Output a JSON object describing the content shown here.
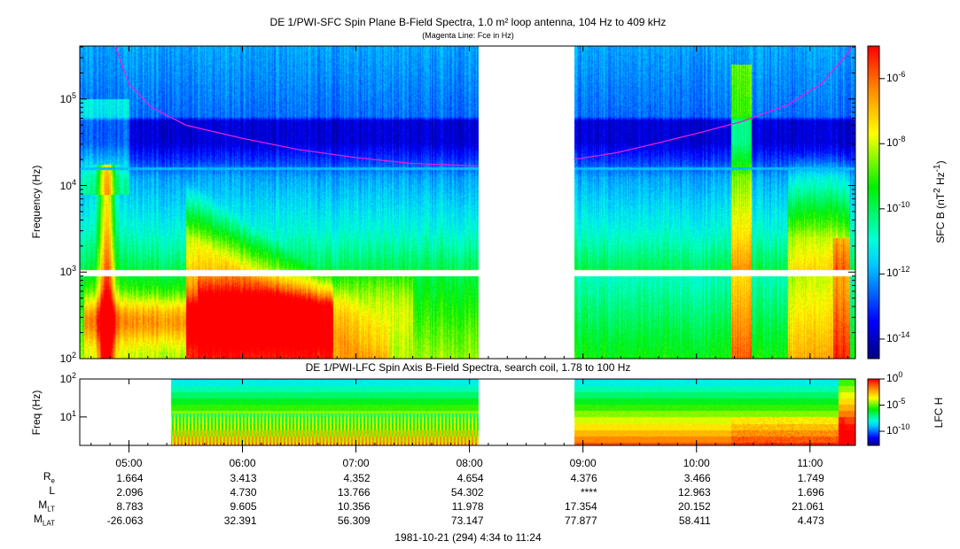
{
  "chart_data": [
    {
      "type": "heatmap",
      "title": "DE 1/PWI-SFC  Spin Plane B-Field Spectra, 1.0 m² loop antenna, 104 Hz to 409 kHz",
      "subtitle": "(Magenta Line: Fce in Hz)",
      "ylabel": "Frequency (Hz)",
      "yscale": "log",
      "ylim": [
        100,
        409000
      ],
      "yticks": [
        {
          "label": "10",
          "exp": "2",
          "value": 100
        },
        {
          "label": "10",
          "exp": "3",
          "value": 1000
        },
        {
          "label": "10",
          "exp": "4",
          "value": 10000
        },
        {
          "label": "10",
          "exp": "5",
          "value": 100000
        }
      ],
      "colorbar": {
        "label": "SFC B (nT² Hz⁻¹)",
        "label_main": "SFC B (nT",
        "label_sup1": "2",
        "label_mid": " Hz",
        "label_sup2": "-1",
        "label_end": ")",
        "log_range": [
          -14.6,
          -5.0
        ],
        "ticks": [
          {
            "label": "10",
            "exp": "-6",
            "value": -6
          },
          {
            "label": "10",
            "exp": "-8",
            "value": -8
          },
          {
            "label": "10",
            "exp": "-10",
            "value": -10
          },
          {
            "label": "10",
            "exp": "-12",
            "value": -12
          },
          {
            "label": "10",
            "exp": "-14",
            "value": -14
          }
        ]
      },
      "data_gap_hours": [
        8.08,
        8.92
      ],
      "fce_line": {
        "color": "#e020e0",
        "points_hours_hz": [
          [
            4.88,
            409000
          ],
          [
            5.0,
            150000
          ],
          [
            5.2,
            80000
          ],
          [
            5.5,
            50000
          ],
          [
            6.0,
            35000
          ],
          [
            6.5,
            26000
          ],
          [
            7.0,
            21000
          ],
          [
            7.5,
            18000
          ],
          [
            8.0,
            17000
          ],
          [
            8.08,
            17000
          ],
          [
            8.92,
            20000
          ],
          [
            9.3,
            24000
          ],
          [
            9.7,
            32000
          ],
          [
            10.0,
            40000
          ],
          [
            10.4,
            55000
          ],
          [
            10.8,
            85000
          ],
          [
            11.1,
            150000
          ],
          [
            11.3,
            300000
          ],
          [
            11.38,
            409000
          ]
        ]
      }
    },
    {
      "type": "heatmap",
      "title": "DE 1/PWI-LFC  Spin Axis B-Field Spectra, search coil, 1.78 to 100 Hz",
      "ylabel": "Freq (Hz)",
      "yscale": "log",
      "ylim": [
        1.78,
        100
      ],
      "yticks": [
        {
          "label": "10",
          "exp": "1",
          "value": 10
        },
        {
          "label": "10",
          "exp": "2",
          "value": 100
        }
      ],
      "colorbar": {
        "label": "LFC H",
        "log_range": [
          -12.7,
          0
        ],
        "ticks": [
          {
            "label": "10",
            "exp": "0",
            "value": 0
          },
          {
            "label": "10",
            "exp": "-5",
            "value": -5
          },
          {
            "label": "10",
            "exp": "-10",
            "value": -10
          }
        ]
      },
      "data_intervals_hours": [
        [
          5.37,
          8.08
        ],
        [
          8.92,
          11.4
        ]
      ]
    }
  ],
  "xaxis": {
    "range_hours": [
      4.567,
      11.4
    ],
    "ticks": [
      "05:00",
      "06:00",
      "07:00",
      "08:00",
      "09:00",
      "10:00",
      "11:00"
    ],
    "tick_hours": [
      5,
      6,
      7,
      8,
      9,
      10,
      11
    ]
  },
  "ephemeris": [
    {
      "label": "R",
      "sub": "e",
      "values": [
        "1.664",
        "3.413",
        "4.352",
        "4.654",
        "4.376",
        "3.466",
        "1.749"
      ]
    },
    {
      "label": "L",
      "sub": "",
      "values": [
        "2.096",
        "4.730",
        "13.766",
        "54.302",
        "****",
        "12.963",
        "1.696"
      ]
    },
    {
      "label": "M",
      "sub": "LT",
      "values": [
        "8.783",
        "9.605",
        "10.356",
        "11.978",
        "17.354",
        "20.152",
        "21.061"
      ]
    },
    {
      "label": "M",
      "sub": "LAT",
      "values": [
        "-26.063",
        "32.391",
        "56.309",
        "73.147",
        "77.877",
        "58.411",
        "4.473"
      ]
    }
  ],
  "footer": "1981-10-21 (294) 4:34 to 11:24"
}
